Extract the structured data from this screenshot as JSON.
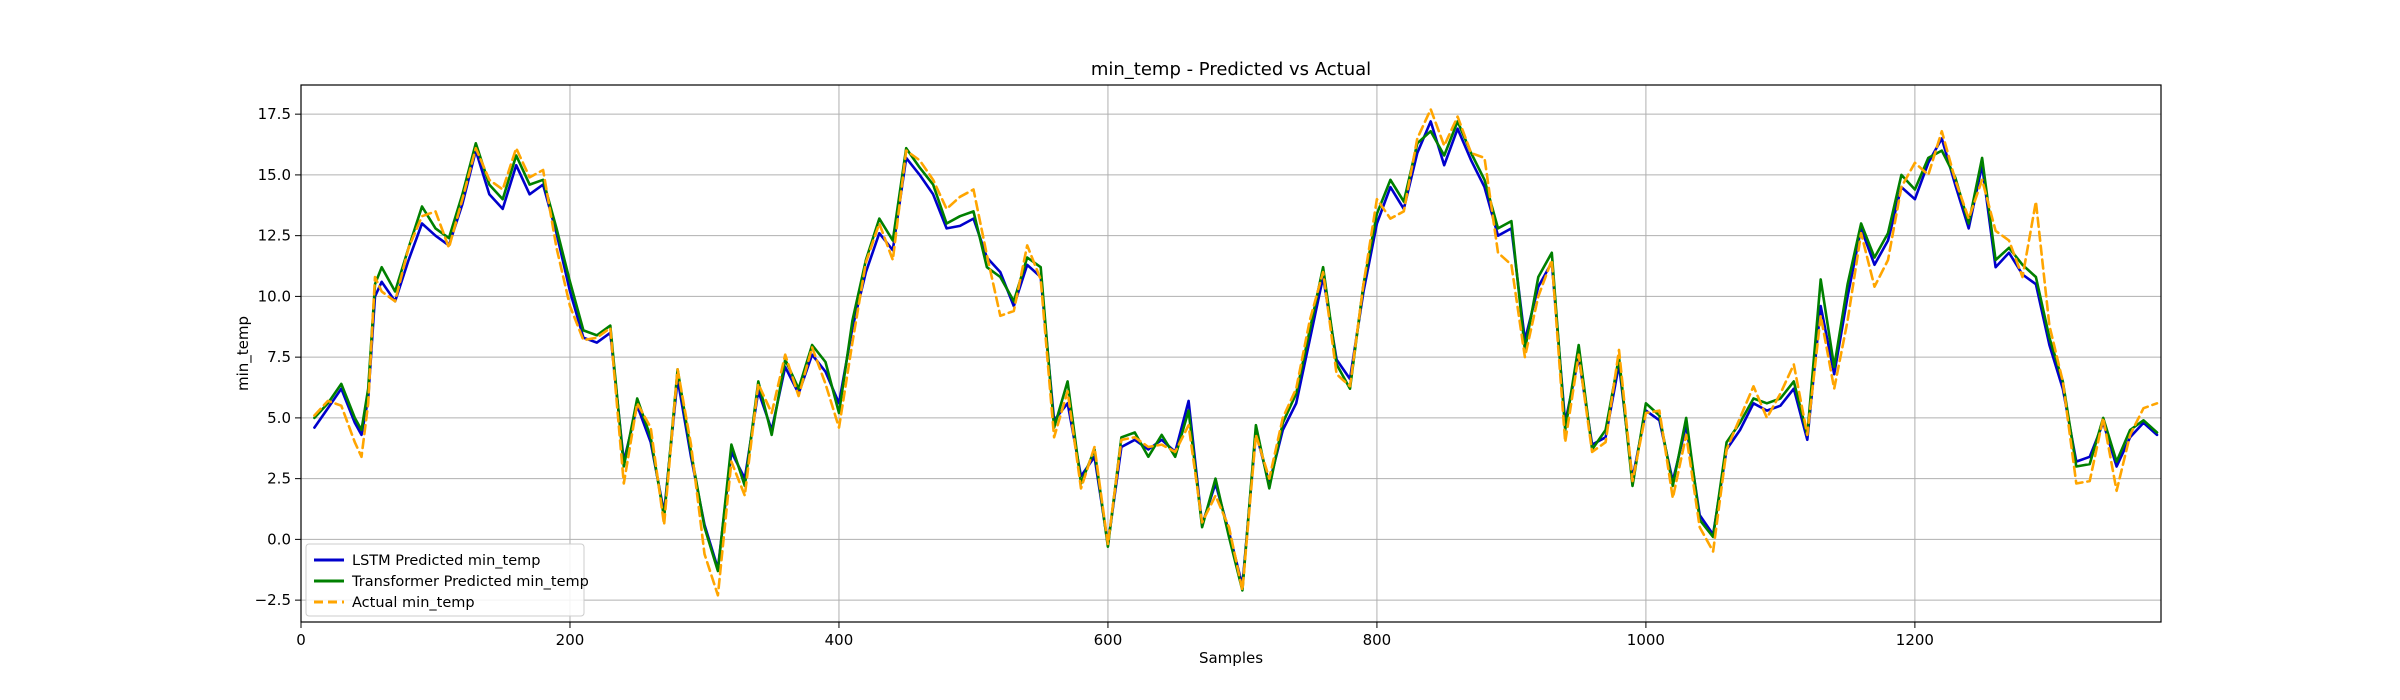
{
  "chart_data": {
    "type": "line",
    "title": "min_temp - Predicted vs Actual",
    "xlabel": "Samples",
    "ylabel": "min_temp",
    "xlim": [
      0,
      1383
    ],
    "ylim": [
      -3.4,
      18.7
    ],
    "xticks": [
      0,
      200,
      400,
      600,
      800,
      1000,
      1200
    ],
    "yticks": [
      -2.5,
      0.0,
      2.5,
      5.0,
      7.5,
      10.0,
      12.5,
      15.0,
      17.5
    ],
    "ytick_labels": [
      "−2.5",
      "0.0",
      "2.5",
      "5.0",
      "7.5",
      "10.0",
      "12.5",
      "15.0",
      "17.5"
    ],
    "grid": true,
    "legend_position": "lower-left",
    "series": [
      {
        "name": "LSTM Predicted min_temp",
        "color": "#0000cc",
        "style": "solid",
        "x": [
          10,
          20,
          30,
          40,
          45,
          50,
          55,
          60,
          70,
          80,
          90,
          100,
          110,
          120,
          130,
          140,
          150,
          160,
          170,
          180,
          190,
          200,
          210,
          220,
          230,
          240,
          250,
          260,
          270,
          280,
          290,
          300,
          310,
          320,
          330,
          340,
          350,
          360,
          370,
          380,
          390,
          400,
          410,
          420,
          430,
          440,
          450,
          460,
          470,
          480,
          490,
          500,
          510,
          520,
          530,
          540,
          550,
          560,
          570,
          580,
          590,
          600,
          610,
          620,
          630,
          640,
          650,
          660,
          670,
          680,
          690,
          700,
          710,
          720,
          730,
          740,
          750,
          760,
          770,
          780,
          790,
          800,
          810,
          820,
          830,
          840,
          850,
          860,
          870,
          880,
          890,
          900,
          910,
          920,
          930,
          940,
          950,
          960,
          970,
          980,
          990,
          1000,
          1010,
          1020,
          1030,
          1040,
          1050,
          1060,
          1070,
          1080,
          1090,
          1100,
          1110,
          1120,
          1130,
          1140,
          1150,
          1160,
          1170,
          1180,
          1190,
          1200,
          1210,
          1220,
          1230,
          1240,
          1250,
          1260,
          1270,
          1280,
          1290,
          1300,
          1310,
          1320,
          1330,
          1340,
          1350,
          1360,
          1370,
          1380
        ],
        "values": [
          4.6,
          5.4,
          6.2,
          4.8,
          4.3,
          5.8,
          10.0,
          10.6,
          9.8,
          11.5,
          13.0,
          12.5,
          12.1,
          13.8,
          16.0,
          14.2,
          13.6,
          15.4,
          14.2,
          14.6,
          12.6,
          10.2,
          8.3,
          8.1,
          8.5,
          3.2,
          5.5,
          4.0,
          1.1,
          6.6,
          3.4,
          0.6,
          -1.2,
          3.6,
          2.5,
          6.1,
          4.5,
          7.1,
          6.0,
          7.6,
          6.9,
          5.6,
          8.7,
          11.0,
          12.6,
          11.9,
          15.7,
          15.0,
          14.2,
          12.8,
          12.9,
          13.2,
          11.6,
          11.0,
          9.6,
          11.3,
          10.8,
          4.9,
          5.6,
          2.6,
          3.4,
          -0.2,
          3.8,
          4.1,
          3.7,
          4.1,
          3.6,
          5.7,
          0.6,
          2.3,
          0.3,
          -1.9,
          4.4,
          2.3,
          4.5,
          5.6,
          8.2,
          10.8,
          7.4,
          6.6,
          10.2,
          13.0,
          14.5,
          13.6,
          15.9,
          17.2,
          15.4,
          16.9,
          15.6,
          14.5,
          12.5,
          12.8,
          8.2,
          10.4,
          11.4,
          4.8,
          7.5,
          3.9,
          4.2,
          7.2,
          2.5,
          5.3,
          4.9,
          2.4,
          4.7,
          1.0,
          0.2,
          3.7,
          4.5,
          5.6,
          5.3,
          5.5,
          6.2,
          4.1,
          9.6,
          6.8,
          10.0,
          12.8,
          11.3,
          12.3,
          14.5,
          14.0,
          15.5,
          16.5,
          14.6,
          12.8,
          15.4,
          11.2,
          11.8,
          10.9,
          10.5,
          8.0,
          6.2,
          3.2,
          3.4,
          4.8,
          3.0,
          4.2,
          4.8,
          4.3
        ]
      },
      {
        "name": "Transformer Predicted min_temp",
        "color": "#008000",
        "style": "solid",
        "x": [
          10,
          20,
          30,
          40,
          45,
          50,
          55,
          60,
          70,
          80,
          90,
          100,
          110,
          120,
          130,
          140,
          150,
          160,
          170,
          180,
          190,
          200,
          210,
          220,
          230,
          240,
          250,
          260,
          270,
          280,
          290,
          300,
          310,
          320,
          330,
          340,
          350,
          360,
          370,
          380,
          390,
          400,
          410,
          420,
          430,
          440,
          450,
          460,
          470,
          480,
          490,
          500,
          510,
          520,
          530,
          540,
          550,
          560,
          570,
          580,
          590,
          600,
          610,
          620,
          630,
          640,
          650,
          660,
          670,
          680,
          690,
          700,
          710,
          720,
          730,
          740,
          750,
          760,
          770,
          780,
          790,
          800,
          810,
          820,
          830,
          840,
          850,
          860,
          870,
          880,
          890,
          900,
          910,
          920,
          930,
          940,
          950,
          960,
          970,
          980,
          990,
          1000,
          1010,
          1020,
          1030,
          1040,
          1050,
          1060,
          1070,
          1080,
          1090,
          1100,
          1110,
          1120,
          1130,
          1140,
          1150,
          1160,
          1170,
          1180,
          1190,
          1200,
          1210,
          1220,
          1230,
          1240,
          1250,
          1260,
          1270,
          1280,
          1290,
          1300,
          1310,
          1320,
          1330,
          1340,
          1350,
          1360,
          1370,
          1380
        ],
        "values": [
          5.0,
          5.6,
          6.4,
          5.0,
          4.5,
          6.2,
          10.5,
          11.2,
          10.2,
          12.0,
          13.7,
          12.8,
          12.4,
          14.2,
          16.3,
          14.6,
          14.0,
          15.8,
          14.6,
          14.8,
          12.8,
          10.6,
          8.6,
          8.4,
          8.8,
          3.0,
          5.8,
          4.2,
          0.9,
          7.0,
          3.6,
          0.5,
          -1.3,
          3.9,
          2.2,
          6.5,
          4.3,
          7.4,
          6.2,
          8.0,
          7.3,
          5.2,
          9.0,
          11.5,
          13.2,
          12.3,
          16.1,
          15.3,
          14.6,
          13.0,
          13.3,
          13.5,
          11.2,
          10.8,
          9.8,
          11.6,
          11.2,
          4.6,
          6.5,
          2.3,
          3.7,
          -0.3,
          4.2,
          4.4,
          3.4,
          4.3,
          3.4,
          5.3,
          0.5,
          2.5,
          0.1,
          -2.1,
          4.7,
          2.1,
          4.8,
          6.0,
          8.6,
          11.2,
          7.2,
          6.2,
          10.5,
          13.4,
          14.8,
          13.9,
          16.3,
          16.8,
          15.8,
          17.2,
          15.9,
          14.8,
          12.8,
          13.1,
          7.8,
          10.8,
          11.8,
          4.5,
          8.0,
          3.7,
          4.5,
          7.5,
          2.2,
          5.6,
          5.1,
          2.2,
          5.0,
          0.8,
          0.1,
          4.0,
          4.8,
          5.8,
          5.6,
          5.8,
          6.5,
          4.3,
          10.7,
          7.1,
          10.5,
          13.0,
          11.6,
          12.6,
          15.0,
          14.4,
          15.7,
          16.0,
          14.9,
          13.0,
          15.7,
          11.5,
          12.0,
          11.3,
          10.8,
          8.3,
          6.5,
          3.0,
          3.1,
          5.0,
          3.2,
          4.5,
          4.9,
          4.4
        ]
      },
      {
        "name": "Actual min_temp",
        "color": "#ffa500",
        "style": "dashed",
        "x": [
          10,
          20,
          30,
          40,
          45,
          50,
          55,
          60,
          70,
          80,
          90,
          100,
          110,
          120,
          130,
          140,
          150,
          160,
          170,
          180,
          190,
          200,
          210,
          220,
          230,
          240,
          250,
          260,
          270,
          280,
          290,
          300,
          310,
          320,
          330,
          340,
          350,
          360,
          370,
          380,
          390,
          400,
          410,
          420,
          430,
          440,
          450,
          460,
          470,
          480,
          490,
          500,
          510,
          520,
          530,
          540,
          550,
          560,
          570,
          580,
          590,
          600,
          610,
          620,
          630,
          640,
          650,
          660,
          670,
          680,
          690,
          700,
          710,
          720,
          730,
          740,
          750,
          760,
          770,
          780,
          790,
          800,
          810,
          820,
          830,
          840,
          850,
          860,
          870,
          880,
          890,
          900,
          910,
          920,
          930,
          940,
          950,
          960,
          970,
          980,
          990,
          1000,
          1010,
          1020,
          1030,
          1040,
          1050,
          1060,
          1070,
          1080,
          1090,
          1100,
          1110,
          1120,
          1130,
          1140,
          1150,
          1160,
          1170,
          1180,
          1190,
          1200,
          1210,
          1220,
          1230,
          1240,
          1250,
          1260,
          1270,
          1280,
          1290,
          1300,
          1310,
          1320,
          1330,
          1340,
          1350,
          1360,
          1370,
          1380
        ],
        "values": [
          5.1,
          5.7,
          5.5,
          4.0,
          3.4,
          5.6,
          10.8,
          10.2,
          9.8,
          12.0,
          13.3,
          13.5,
          12.0,
          14.0,
          16.1,
          14.8,
          14.4,
          16.1,
          14.9,
          15.2,
          12.0,
          9.6,
          8.2,
          8.3,
          8.7,
          2.3,
          5.6,
          4.6,
          0.6,
          7.0,
          3.9,
          -0.6,
          -2.3,
          3.2,
          1.8,
          6.4,
          5.2,
          7.6,
          5.9,
          7.9,
          6.4,
          4.6,
          8.1,
          11.4,
          13.0,
          11.5,
          16.0,
          15.6,
          14.8,
          13.6,
          14.1,
          14.4,
          11.7,
          9.2,
          9.4,
          12.1,
          10.7,
          4.2,
          6.1,
          2.1,
          3.8,
          -0.2,
          4.1,
          4.2,
          3.8,
          3.9,
          3.6,
          4.7,
          0.7,
          1.8,
          0.5,
          -2.1,
          4.3,
          2.5,
          5.0,
          6.2,
          9.0,
          11.0,
          6.8,
          6.3,
          10.5,
          14.0,
          13.2,
          13.5,
          16.5,
          17.7,
          16.2,
          17.4,
          15.9,
          15.7,
          11.8,
          11.3,
          7.5,
          10.0,
          11.5,
          4.0,
          7.6,
          3.6,
          4.0,
          7.8,
          2.4,
          5.2,
          5.3,
          1.7,
          4.3,
          0.5,
          -0.5,
          3.7,
          5.0,
          6.3,
          5.0,
          6.0,
          7.2,
          4.3,
          9.2,
          6.2,
          9.0,
          12.6,
          10.4,
          11.5,
          14.5,
          15.5,
          15.0,
          16.8,
          14.8,
          13.2,
          14.8,
          12.7,
          12.3,
          10.8,
          13.9,
          8.8,
          6.5,
          2.3,
          2.4,
          5.0,
          2.0,
          4.3,
          5.4,
          5.6
        ]
      }
    ]
  }
}
